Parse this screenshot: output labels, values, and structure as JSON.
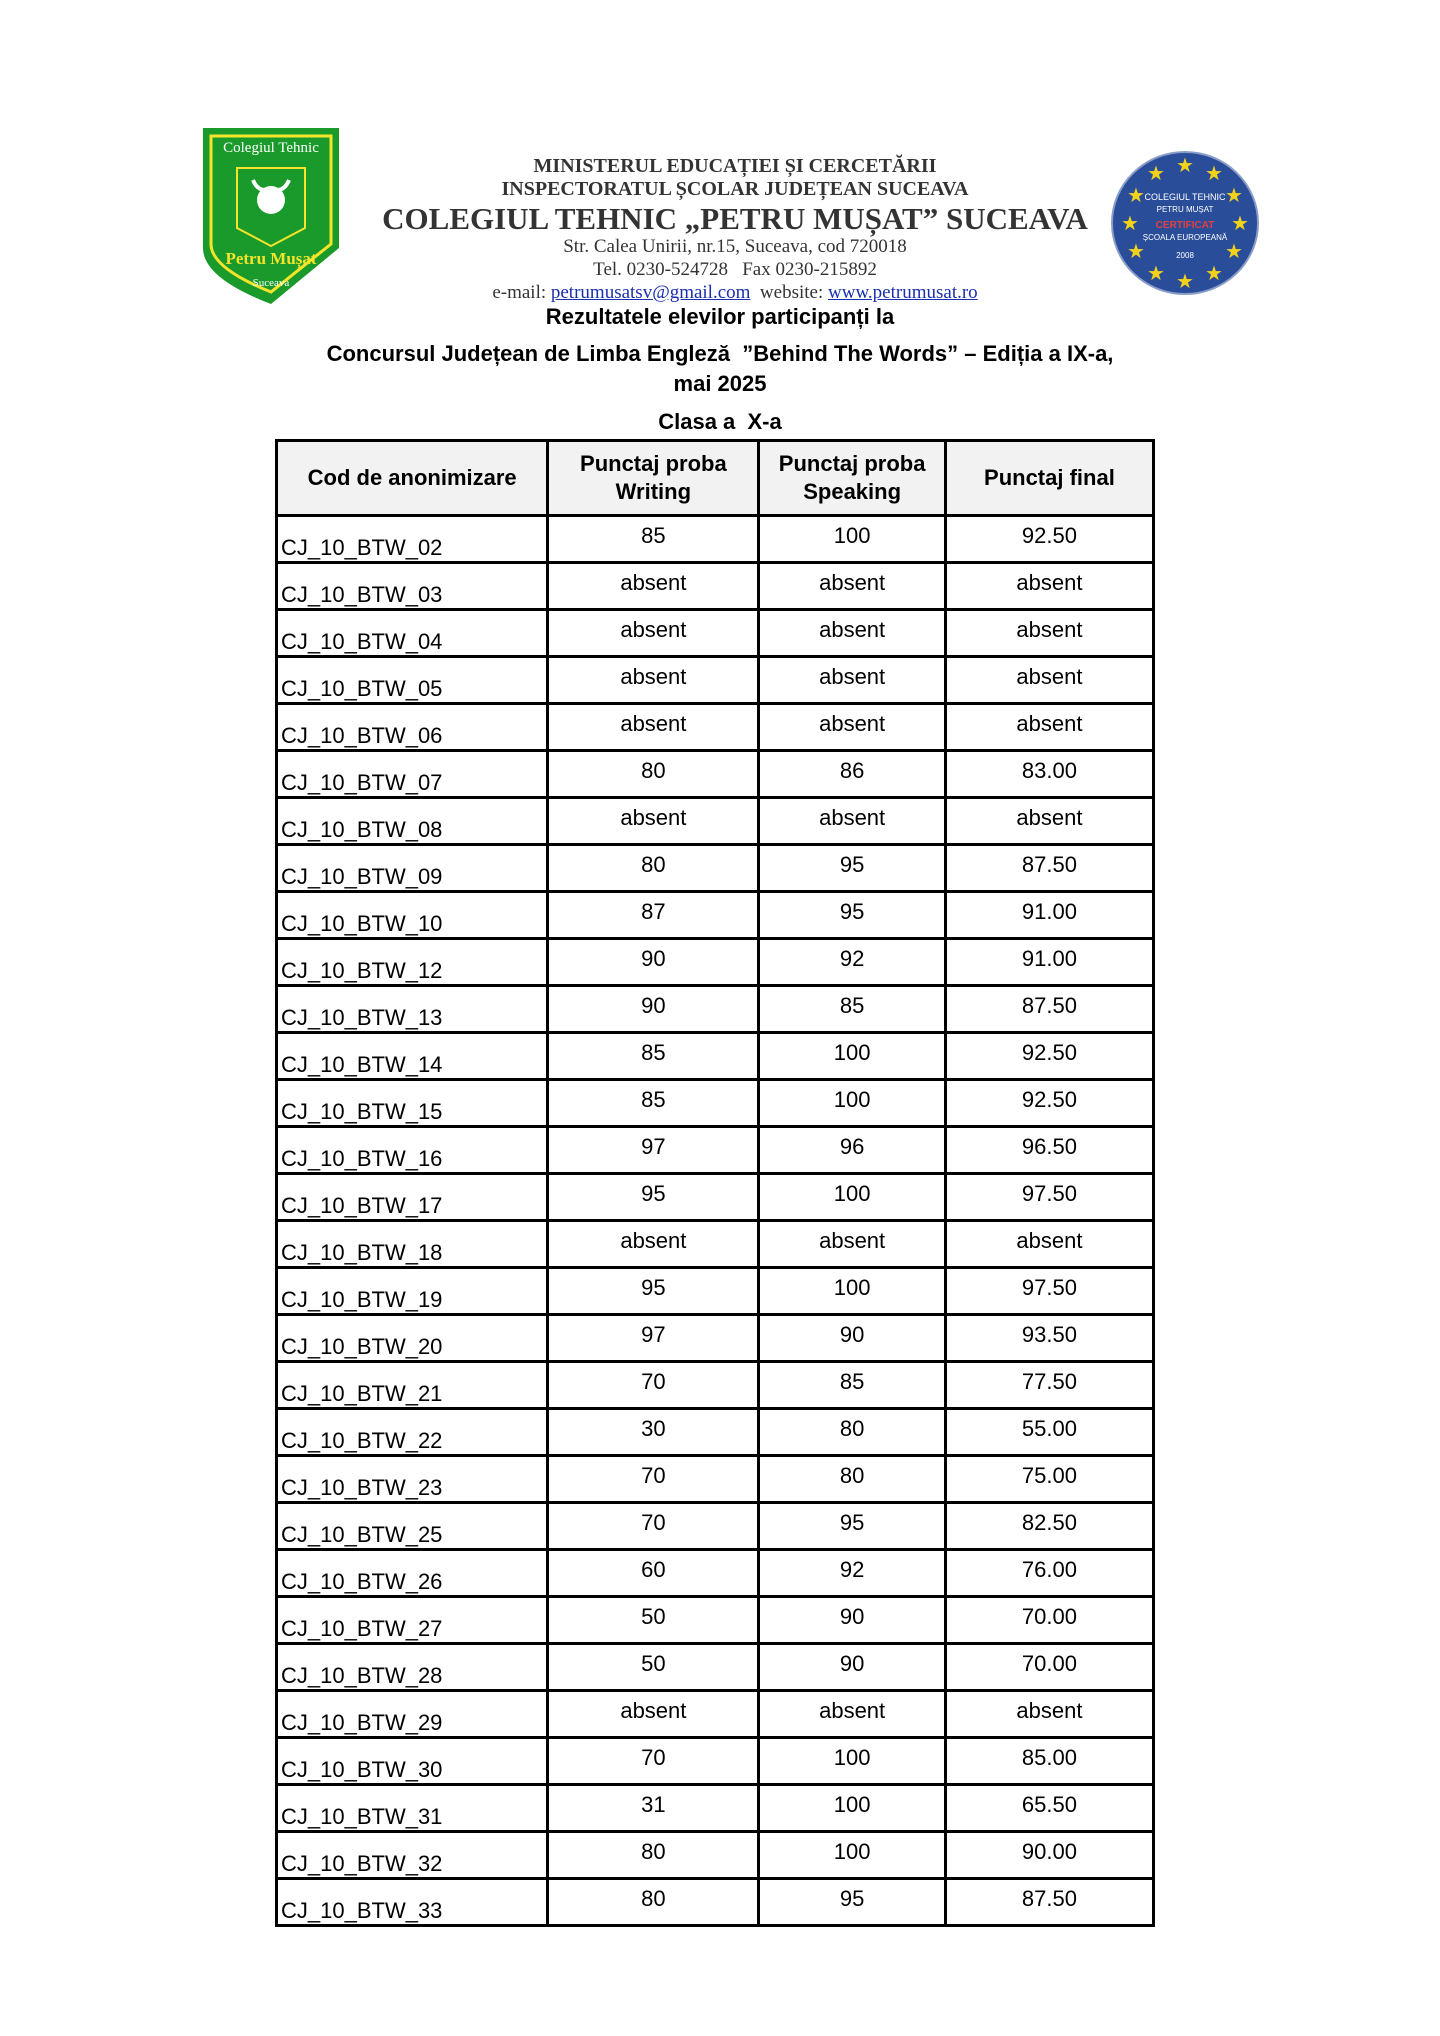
{
  "header": {
    "logo_text": [
      "Colegiul Tehnic",
      "Petru Mușat",
      "Suceava"
    ],
    "ministry": "MINISTERUL EDUCAȚIEI ȘI CERCETĂRII",
    "inspectorate": "INSPECTORATUL ȘCOLAR JUDEȚEAN SUCEAVA",
    "school": "COLEGIUL TEHNIC „PETRU MUȘAT” SUCEAVA",
    "address": "Str. Calea Unirii, nr.15, Suceava, cod 720018",
    "phone": "Tel. 0230-524728   Fax 0230-215892",
    "email_label": "e-mail:",
    "email": "petrumusatsv@gmail.com",
    "website_label": "website:",
    "website": "www.petrumusat.ro",
    "seal_text": [
      "COLEGIUL TEHNIC",
      "PETRU MUȘAT",
      "CERTIFICAT",
      "ȘCOALA EUROPEANĂ",
      "2008"
    ],
    "colors": {
      "logo_green": "#1a9a2a",
      "logo_yellow": "#f5e52a",
      "seal_blue": "#2a4d9a",
      "star_yellow": "#f5d21a",
      "link": "#1a2fb0"
    }
  },
  "titles": {
    "line1": "Rezultatele elevilor participanți la",
    "line2": "Concursul Județean de Limba Engleză  ”Behind The Words” – Ediția a IX-a,",
    "line3": "mai 2025",
    "class": "Clasa a  X-a"
  },
  "table": {
    "headers": [
      "Cod de anonimizare",
      "Punctaj proba Writing",
      "Punctaj proba Speaking",
      "Punctaj final"
    ],
    "rows": [
      [
        "CJ_10_BTW_02",
        "85",
        "100",
        "92.50"
      ],
      [
        "CJ_10_BTW_03",
        "absent",
        "absent",
        "absent"
      ],
      [
        "CJ_10_BTW_04",
        "absent",
        "absent",
        "absent"
      ],
      [
        "CJ_10_BTW_05",
        "absent",
        "absent",
        "absent"
      ],
      [
        "CJ_10_BTW_06",
        "absent",
        "absent",
        "absent"
      ],
      [
        "CJ_10_BTW_07",
        "80",
        "86",
        "83.00"
      ],
      [
        "CJ_10_BTW_08",
        "absent",
        "absent",
        "absent"
      ],
      [
        "CJ_10_BTW_09",
        "80",
        "95",
        "87.50"
      ],
      [
        "CJ_10_BTW_10",
        "87",
        "95",
        "91.00"
      ],
      [
        "CJ_10_BTW_12",
        "90",
        "92",
        "91.00"
      ],
      [
        "CJ_10_BTW_13",
        "90",
        "85",
        "87.50"
      ],
      [
        "CJ_10_BTW_14",
        "85",
        "100",
        "92.50"
      ],
      [
        "CJ_10_BTW_15",
        "85",
        "100",
        "92.50"
      ],
      [
        "CJ_10_BTW_16",
        "97",
        "96",
        "96.50"
      ],
      [
        "CJ_10_BTW_17",
        "95",
        "100",
        "97.50"
      ],
      [
        "CJ_10_BTW_18",
        "absent",
        "absent",
        "absent"
      ],
      [
        "CJ_10_BTW_19",
        "95",
        "100",
        "97.50"
      ],
      [
        "CJ_10_BTW_20",
        "97",
        "90",
        "93.50"
      ],
      [
        "CJ_10_BTW_21",
        "70",
        "85",
        "77.50"
      ],
      [
        "CJ_10_BTW_22",
        "30",
        "80",
        "55.00"
      ],
      [
        "CJ_10_BTW_23",
        "70",
        "80",
        "75.00"
      ],
      [
        "CJ_10_BTW_25",
        "70",
        "95",
        "82.50"
      ],
      [
        "CJ_10_BTW_26",
        "60",
        "92",
        "76.00"
      ],
      [
        "CJ_10_BTW_27",
        "50",
        "90",
        "70.00"
      ],
      [
        "CJ_10_BTW_28",
        "50",
        "90",
        "70.00"
      ],
      [
        "CJ_10_BTW_29",
        "absent",
        "absent",
        "absent"
      ],
      [
        "CJ_10_BTW_30",
        "70",
        "100",
        "85.00"
      ],
      [
        "CJ_10_BTW_31",
        "31",
        "100",
        "65.50"
      ],
      [
        "CJ_10_BTW_32",
        "80",
        "100",
        "90.00"
      ],
      [
        "CJ_10_BTW_33",
        "80",
        "95",
        "87.50"
      ]
    ]
  }
}
